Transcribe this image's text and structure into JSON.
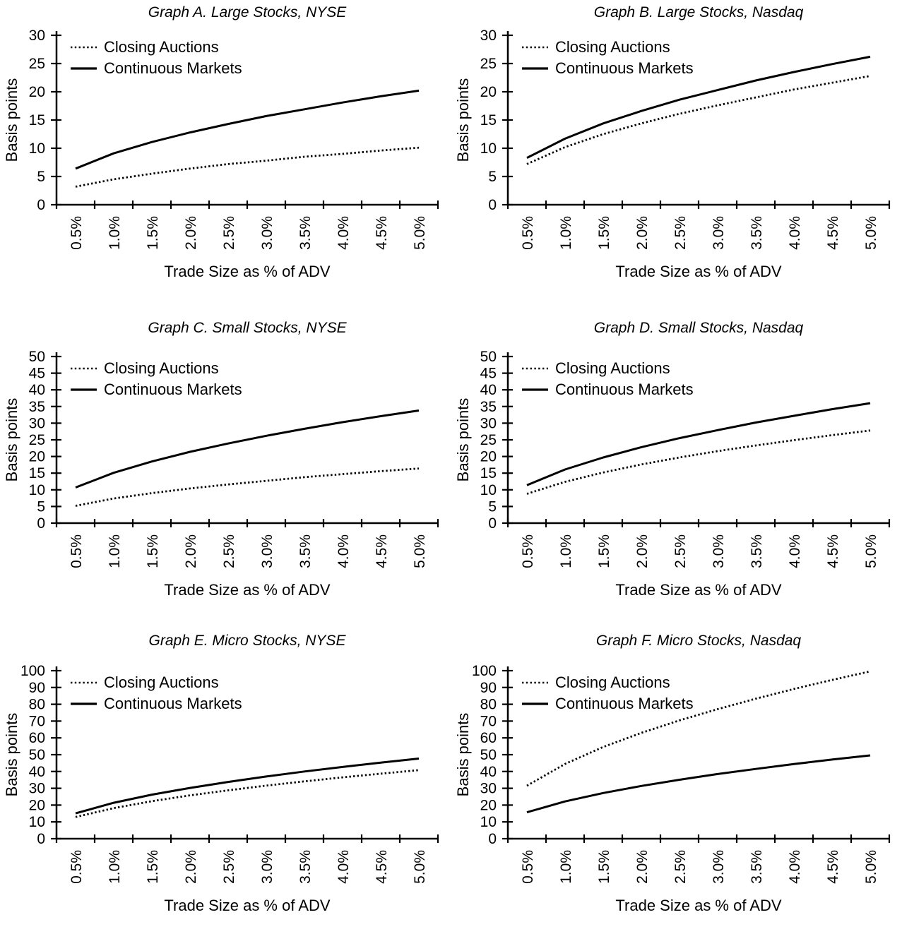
{
  "page": {
    "colors": {
      "foreground": "#000000",
      "background": "#ffffff"
    }
  },
  "chart_data": [
    {
      "type": "line",
      "title": "Graph A. Large Stocks, NYSE",
      "xlabel": "Trade Size as % of ADV",
      "ylabel": "Basis points",
      "ylim": [
        0,
        30
      ],
      "yticks": [
        0,
        5,
        10,
        15,
        20,
        25,
        30
      ],
      "x_categories": [
        "0.5%",
        "1.0%",
        "1.5%",
        "2.0%",
        "2.5%",
        "3.0%",
        "3.5%",
        "4.0%",
        "4.5%",
        "5.0%"
      ],
      "grid": false,
      "legend_position": "top-left",
      "series": [
        {
          "name": "Closing Auctions",
          "line_style": "dotted",
          "values": [
            3.2,
            4.5,
            5.5,
            6.4,
            7.2,
            7.8,
            8.5,
            9.0,
            9.6,
            10.1
          ]
        },
        {
          "name": "Continuous Markets",
          "line_style": "solid",
          "values": [
            6.4,
            9.1,
            11.1,
            12.8,
            14.3,
            15.7,
            16.9,
            18.1,
            19.2,
            20.2
          ]
        }
      ]
    },
    {
      "type": "line",
      "title": "Graph B. Large Stocks, Nasdaq",
      "xlabel": "Trade Size as % of ADV",
      "ylabel": "Basis points",
      "ylim": [
        0,
        30
      ],
      "yticks": [
        0,
        5,
        10,
        15,
        20,
        25,
        30
      ],
      "x_categories": [
        "0.5%",
        "1.0%",
        "1.5%",
        "2.0%",
        "2.5%",
        "3.0%",
        "3.5%",
        "4.0%",
        "4.5%",
        "5.0%"
      ],
      "grid": false,
      "legend_position": "top-left",
      "series": [
        {
          "name": "Closing Auctions",
          "line_style": "dotted",
          "values": [
            7.2,
            10.2,
            12.5,
            14.4,
            16.1,
            17.6,
            19.0,
            20.4,
            21.6,
            22.8
          ]
        },
        {
          "name": "Continuous Markets",
          "line_style": "solid",
          "values": [
            8.3,
            11.7,
            14.4,
            16.6,
            18.6,
            20.3,
            22.0,
            23.5,
            24.9,
            26.2
          ]
        }
      ]
    },
    {
      "type": "line",
      "title": "Graph C. Small Stocks, NYSE",
      "xlabel": "Trade Size as % of ADV",
      "ylabel": "Basis points",
      "ylim": [
        0,
        50
      ],
      "yticks": [
        0,
        5,
        10,
        15,
        20,
        25,
        30,
        35,
        40,
        45,
        50
      ],
      "x_categories": [
        "0.5%",
        "1.0%",
        "1.5%",
        "2.0%",
        "2.5%",
        "3.0%",
        "3.5%",
        "4.0%",
        "4.5%",
        "5.0%"
      ],
      "grid": false,
      "legend_position": "top-left",
      "series": [
        {
          "name": "Closing Auctions",
          "line_style": "dotted",
          "values": [
            5.2,
            7.4,
            9.0,
            10.4,
            11.6,
            12.7,
            13.8,
            14.7,
            15.6,
            16.4
          ]
        },
        {
          "name": "Continuous Markets",
          "line_style": "solid",
          "values": [
            10.7,
            15.1,
            18.5,
            21.4,
            23.9,
            26.2,
            28.3,
            30.3,
            32.1,
            33.8
          ]
        }
      ]
    },
    {
      "type": "line",
      "title": "Graph D. Small Stocks, Nasdaq",
      "xlabel": "Trade Size as % of ADV",
      "ylabel": "Basis points",
      "ylim": [
        0,
        50
      ],
      "yticks": [
        0,
        5,
        10,
        15,
        20,
        25,
        30,
        35,
        40,
        45,
        50
      ],
      "x_categories": [
        "0.5%",
        "1.0%",
        "1.5%",
        "2.0%",
        "2.5%",
        "3.0%",
        "3.5%",
        "4.0%",
        "4.5%",
        "5.0%"
      ],
      "grid": false,
      "legend_position": "top-left",
      "series": [
        {
          "name": "Closing Auctions",
          "line_style": "dotted",
          "values": [
            8.8,
            12.4,
            15.2,
            17.6,
            19.7,
            21.6,
            23.3,
            24.9,
            26.4,
            27.8
          ]
        },
        {
          "name": "Continuous Markets",
          "line_style": "solid",
          "values": [
            11.4,
            16.1,
            19.7,
            22.8,
            25.5,
            27.9,
            30.2,
            32.2,
            34.2,
            36.0
          ]
        }
      ]
    },
    {
      "type": "line",
      "title": "Graph E. Micro Stocks, NYSE",
      "xlabel": "Trade Size as % of ADV",
      "ylabel": "Basis points",
      "ylim": [
        0,
        100
      ],
      "yticks": [
        0,
        10,
        20,
        30,
        40,
        50,
        60,
        70,
        80,
        90,
        100
      ],
      "x_categories": [
        "0.5%",
        "1.0%",
        "1.5%",
        "2.0%",
        "2.5%",
        "3.0%",
        "3.5%",
        "4.0%",
        "4.5%",
        "5.0%"
      ],
      "grid": false,
      "legend_position": "top-left",
      "series": [
        {
          "name": "Closing Auctions",
          "line_style": "dotted",
          "values": [
            12.9,
            18.2,
            22.3,
            25.8,
            28.8,
            31.6,
            34.1,
            36.5,
            38.7,
            40.8
          ]
        },
        {
          "name": "Continuous Markets",
          "line_style": "solid",
          "values": [
            15.1,
            21.4,
            26.2,
            30.2,
            33.8,
            37.0,
            40.0,
            42.7,
            45.3,
            47.7
          ]
        }
      ]
    },
    {
      "type": "line",
      "title": "Graph F. Micro Stocks, Nasdaq",
      "xlabel": "Trade Size as % of ADV",
      "ylabel": "Basis points",
      "ylim": [
        0,
        100
      ],
      "yticks": [
        0,
        10,
        20,
        30,
        40,
        50,
        60,
        70,
        80,
        90,
        100
      ],
      "x_categories": [
        "0.5%",
        "1.0%",
        "1.5%",
        "2.0%",
        "2.5%",
        "3.0%",
        "3.5%",
        "4.0%",
        "4.5%",
        "5.0%"
      ],
      "grid": false,
      "legend_position": "top-left",
      "series": [
        {
          "name": "Closing Auctions",
          "line_style": "dotted",
          "values": [
            31.5,
            44.5,
            54.6,
            63.0,
            70.4,
            77.1,
            83.3,
            89.1,
            94.5,
            99.6
          ]
        },
        {
          "name": "Continuous Markets",
          "line_style": "solid",
          "values": [
            15.7,
            22.2,
            27.2,
            31.4,
            35.1,
            38.5,
            41.5,
            44.4,
            47.1,
            49.6
          ]
        }
      ]
    }
  ]
}
